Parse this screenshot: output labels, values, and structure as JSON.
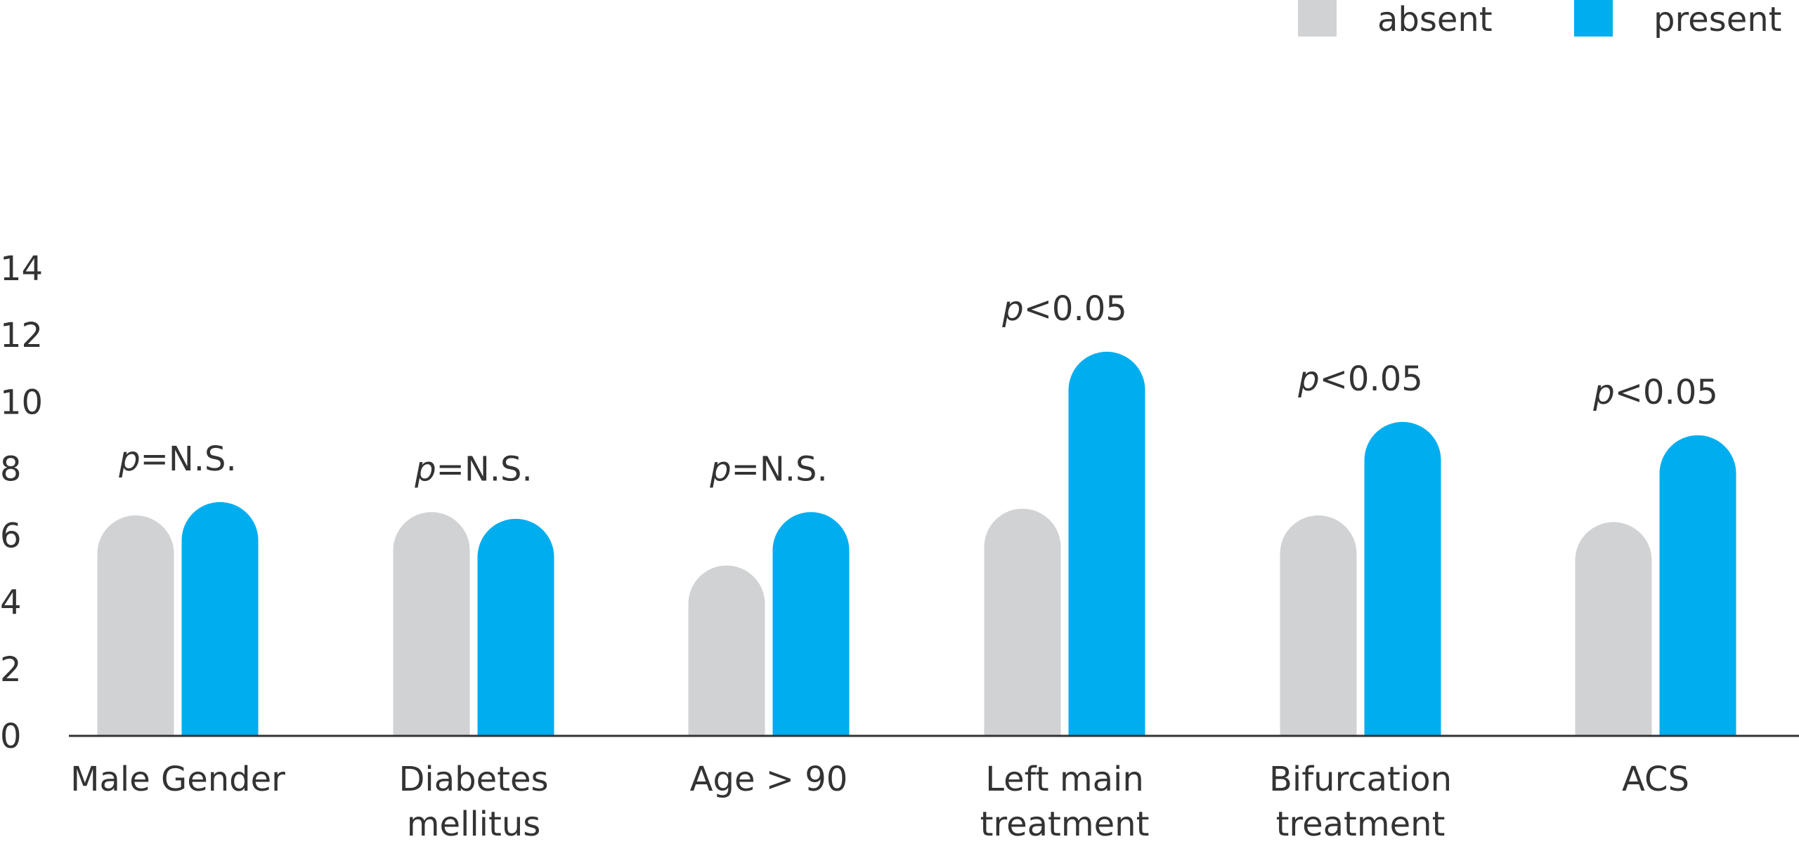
{
  "chart_data": {
    "type": "bar",
    "categories": [
      [
        "Male Gender"
      ],
      [
        "Diabetes",
        "mellitus"
      ],
      [
        "Age > 90"
      ],
      [
        "Left main",
        "treatment"
      ],
      [
        "Bifurcation",
        "treatment"
      ],
      [
        "ACS"
      ]
    ],
    "series": [
      {
        "name": "absent",
        "color": "#d1d2d4",
        "values": [
          6.6,
          6.7,
          5.1,
          6.8,
          6.6,
          6.4
        ]
      },
      {
        "name": "present",
        "color": "#00aeef",
        "values": [
          7.0,
          6.5,
          6.7,
          11.5,
          9.4,
          9.0
        ]
      }
    ],
    "annotations": [
      {
        "italic": "p",
        "text": "=N.S."
      },
      {
        "italic": "p",
        "text": "=N.S."
      },
      {
        "italic": "p",
        "text": "=N.S."
      },
      {
        "italic": "p",
        "text": "<0.05"
      },
      {
        "italic": "p",
        "text": "<0.05"
      },
      {
        "italic": "p",
        "text": "<0.05"
      }
    ],
    "ylim": [
      0,
      14
    ],
    "yticks": [
      0,
      2,
      4,
      6,
      8,
      10,
      12,
      14
    ],
    "grid": false,
    "legend": "top-right"
  }
}
